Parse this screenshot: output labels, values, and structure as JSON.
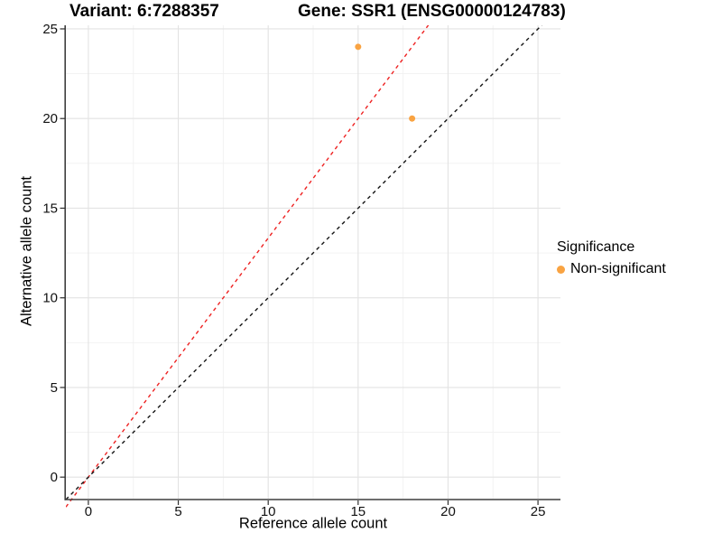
{
  "chart_data": {
    "type": "scatter",
    "title_left": "Variant: 6:7288357",
    "title_right": "Gene: SSR1 (ENSG00000124783)",
    "xlabel": "Reference allele count",
    "ylabel": "Alternative allele count",
    "xlim": [
      -1.25,
      26.25
    ],
    "ylim": [
      -1.2,
      25.2
    ],
    "x_ticks": [
      0,
      5,
      10,
      15,
      20,
      25
    ],
    "y_ticks": [
      0,
      5,
      10,
      15,
      20,
      25
    ],
    "x_minor_ticks": [
      2.5,
      7.5,
      12.5,
      17.5,
      22.5
    ],
    "y_minor_ticks": [
      2.5,
      7.5,
      12.5,
      17.5,
      22.5
    ],
    "grid": true,
    "series": [
      {
        "name": "Non-significant",
        "color": "#F9A342",
        "points": [
          {
            "x": 15,
            "y": 24
          },
          {
            "x": 18,
            "y": 20
          }
        ]
      }
    ],
    "reference_lines": [
      {
        "name": "allelic-ratio-line",
        "slope": 1.3333,
        "intercept": 0,
        "color": "#EE2222",
        "style": "dashed"
      },
      {
        "name": "identity-line",
        "slope": 1.0,
        "intercept": 0,
        "color": "#141414",
        "style": "dashed"
      }
    ],
    "legend": {
      "title": "Significance",
      "position": "right",
      "items": [
        {
          "label": "Non-significant",
          "color": "#F9A342"
        }
      ]
    }
  },
  "colors": {
    "background": "#FFFFFF",
    "grid_major": "#E3E3E3",
    "grid_minor": "#F1F1F1",
    "axis_line": "#3F3F3F",
    "tick": "#2E2E2E",
    "text": "#111111"
  }
}
